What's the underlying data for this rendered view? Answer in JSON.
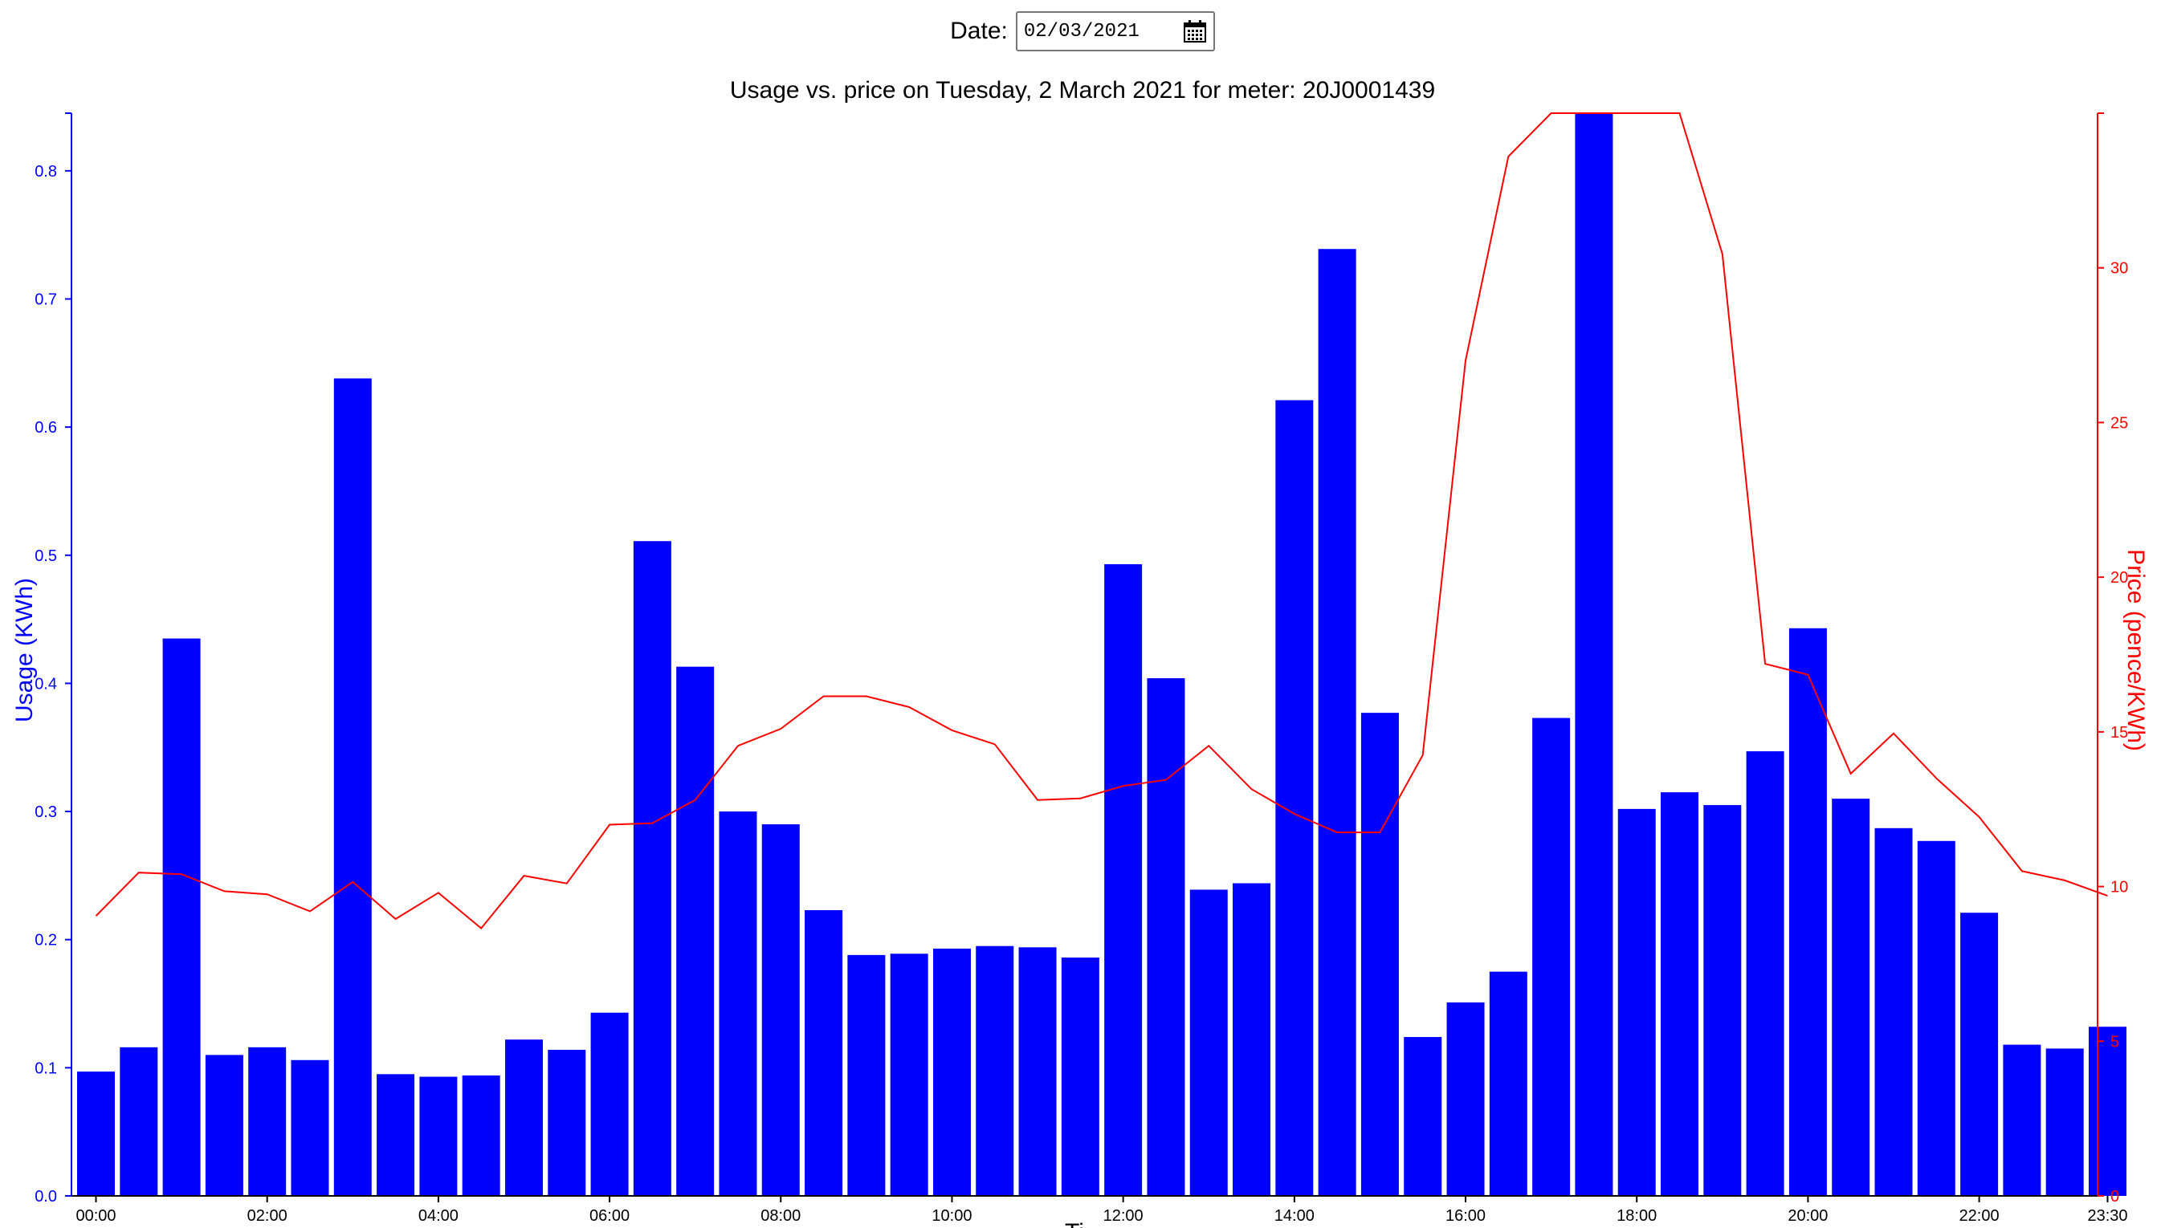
{
  "date_picker": {
    "label": "Date:",
    "value": "02/03/2021",
    "icon": "calendar-icon"
  },
  "chart_data": {
    "type": "bar",
    "title": "Usage vs. price on Tuesday, 2 March 2021 for meter: 20J0001439",
    "xlabel": "Ti",
    "ylabel_left": "Usage (KWh)",
    "ylabel_right": "Price (pence/KWh)",
    "x_ticks": [
      "00:00",
      "02:00",
      "04:00",
      "06:00",
      "08:00",
      "10:00",
      "12:00",
      "14:00",
      "16:00",
      "18:00",
      "20:00",
      "22:00",
      "23:30"
    ],
    "y_left": {
      "lim": [
        0,
        0.845
      ],
      "ticks": [
        "0.0",
        "0.1",
        "0.2",
        "0.3",
        "0.4",
        "0.5",
        "0.6",
        "0.7",
        "0.8"
      ]
    },
    "y_right": {
      "lim": [
        0,
        35
      ],
      "ticks": [
        "0",
        "5",
        "10",
        "15",
        "20",
        "25",
        "30"
      ]
    },
    "colors": {
      "usage": "#0000ff",
      "price": "#ff0000"
    },
    "series": [
      {
        "name": "Usage (KWh)",
        "type": "bar",
        "values": [
          0.097,
          0.116,
          0.435,
          0.11,
          0.116,
          0.106,
          0.638,
          0.095,
          0.093,
          0.094,
          0.122,
          0.114,
          0.143,
          0.511,
          0.413,
          0.3,
          0.29,
          0.223,
          0.188,
          0.189,
          0.193,
          0.195,
          0.194,
          0.186,
          0.493,
          0.404,
          0.239,
          0.244,
          0.621,
          0.739,
          0.377,
          0.124,
          0.151,
          0.175,
          0.373,
          0.845,
          0.302,
          0.315,
          0.305,
          0.347,
          0.443,
          0.31,
          0.287,
          0.277,
          0.221,
          0.118,
          0.115,
          0.132
        ]
      },
      {
        "name": "Price (pence/KWh)",
        "type": "line",
        "values": [
          9.05,
          10.45,
          10.4,
          9.85,
          9.75,
          9.2,
          10.15,
          8.95,
          9.8,
          8.65,
          10.35,
          10.1,
          12.0,
          12.05,
          12.8,
          14.55,
          15.1,
          16.15,
          16.15,
          15.8,
          15.05,
          14.6,
          12.8,
          12.85,
          13.25,
          13.45,
          14.55,
          13.15,
          12.35,
          11.75,
          11.75,
          14.25,
          27.0,
          33.6,
          35.0,
          35.0,
          35.0,
          35.0,
          30.45,
          17.2,
          16.85,
          13.65,
          14.95,
          13.5,
          12.25,
          10.5,
          10.2,
          9.7
        ]
      }
    ]
  }
}
